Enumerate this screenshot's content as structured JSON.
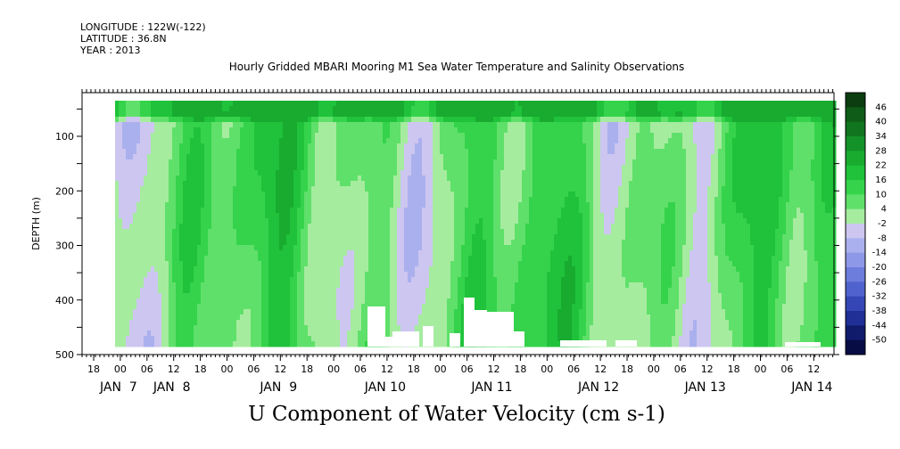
{
  "header": {
    "longitude": "LONGITUDE : 122W(-122)",
    "latitude": "LATITUDE : 36.8N",
    "year": "YEAR : 2013"
  },
  "chart_data": {
    "type": "heatmap",
    "title": "Hourly Gridded MBARI Mooring M1 Sea Water Temperature and Salinity Observations",
    "subtitle": "U Component of Water Velocity (cm s-1)",
    "ylabel": "DEPTH (m)",
    "xlabel": "",
    "ylim": [
      500,
      20
    ],
    "y_ticks": [
      100,
      200,
      300,
      400,
      500
    ],
    "x_hours": [
      "18",
      "00",
      "06",
      "12",
      "18",
      "00",
      "06",
      "12",
      "18",
      "00",
      "06",
      "12",
      "18",
      "00",
      "06",
      "12",
      "18",
      "00",
      "06",
      "12",
      "18",
      "00",
      "06",
      "12",
      "18",
      "00",
      "06",
      "12",
      "18",
      "00",
      "06",
      "12"
    ],
    "x_days": [
      {
        "label": "JAN  7",
        "hour_index": 1
      },
      {
        "label": "JAN  8",
        "hour_index": 3
      },
      {
        "label": "JAN  9",
        "hour_index": 7
      },
      {
        "label": "JAN 10",
        "hour_index": 11
      },
      {
        "label": "JAN 11",
        "hour_index": 15
      },
      {
        "label": "JAN 12",
        "hour_index": 19
      },
      {
        "label": "JAN 13",
        "hour_index": 23
      },
      {
        "label": "JAN 14",
        "hour_index": 27
      }
    ],
    "colorbar": {
      "labels": [
        "46",
        "40",
        "34",
        "28",
        "22",
        "16",
        "10",
        "4",
        "-2",
        "-8",
        "-14",
        "-20",
        "-26",
        "-32",
        "-38",
        "-44",
        "-50"
      ],
      "colors": [
        "#0b3d10",
        "#0e5c17",
        "#10751e",
        "#139228",
        "#18ab30",
        "#1fc23a",
        "#34d34b",
        "#5fe06a",
        "#a6ec9f",
        "#ccc6f0",
        "#aab0ee",
        "#8e98e8",
        "#6c7ddc",
        "#4f62cd",
        "#3447b5",
        "#1f2f96",
        "#101b6b",
        "#080c45"
      ]
    },
    "grid": false
  }
}
